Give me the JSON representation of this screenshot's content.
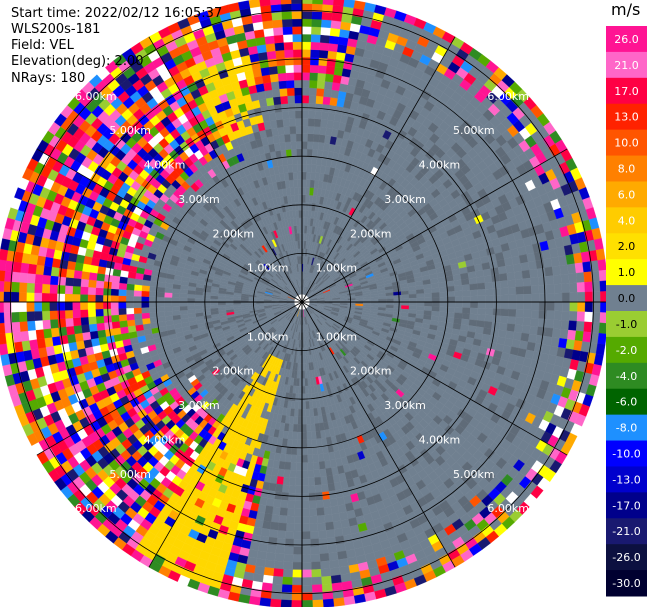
{
  "header": {
    "start_time": "Start time: 2022/02/12 16:05:37",
    "station": "WLS200s-181",
    "field": "Field: VEL",
    "elevation": "Elevation(deg): 2.00",
    "nrays": "NRays: 180"
  },
  "chart_data": {
    "type": "heatmap",
    "subtype": "polar-ppi",
    "field": "VEL",
    "units": "m/s",
    "elevation_deg": 2.0,
    "nrays": 180,
    "range_ring_labels": [
      "1.00km",
      "2.00km",
      "3.00km",
      "4.00km",
      "5.00km",
      "6.00km"
    ],
    "range_max_km": 6.3,
    "colorbar": {
      "label": "m/s",
      "ticks": [
        "26.0",
        "21.0",
        "17.0",
        "13.0",
        "10.0",
        "8.0",
        "6.0",
        "4.0",
        "2.0",
        "1.0",
        "0.0",
        "-1.0",
        "-2.0",
        "-4.0",
        "-6.0",
        "-8.0",
        "-10.0",
        "-13.0",
        "-17.0",
        "-21.0",
        "-26.0",
        "-30.0"
      ],
      "colors": [
        "#ff1493",
        "#ff66c8",
        "#ff0044",
        "#ff2200",
        "#ff5500",
        "#ff8000",
        "#ffaa00",
        "#ffcc00",
        "#ffe000",
        "#ffff00",
        "#708090",
        "#9acd32",
        "#55aa00",
        "#2e8b22",
        "#006400",
        "#1e90ff",
        "#0000ff",
        "#0000cd",
        "#00008b",
        "#191970",
        "#0c1040",
        "#000030"
      ]
    }
  }
}
